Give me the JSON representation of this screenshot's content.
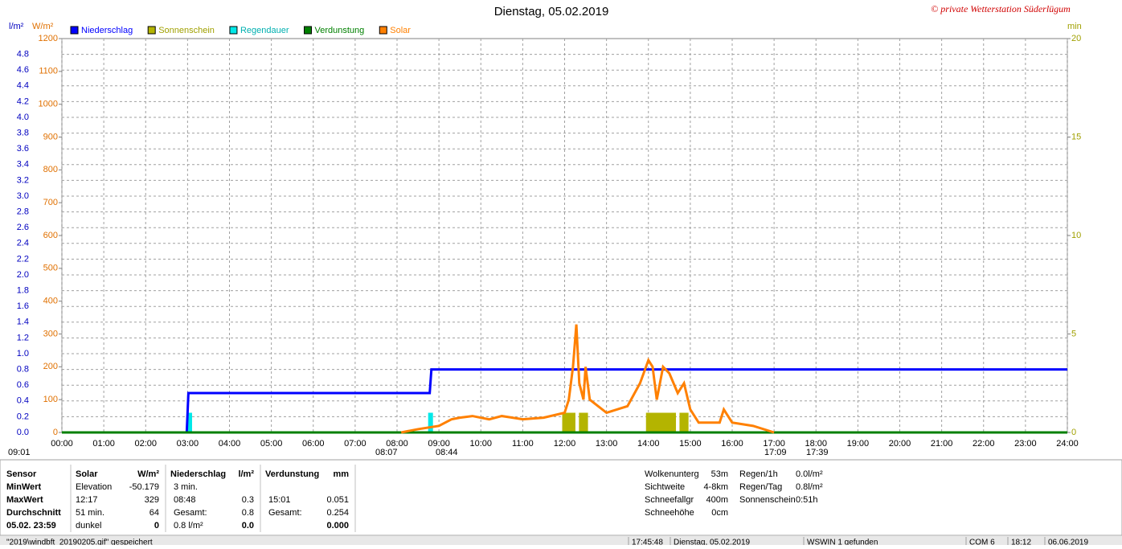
{
  "chart_data": {
    "type": "line",
    "title": "Dienstag, 05.02.2019",
    "credit": "© private Wetterstation Süderlügum",
    "y_unit": "l/m²",
    "ysolar_unit": "W/m²",
    "y2_unit": "min",
    "xlim": [
      0,
      24
    ],
    "xticks": [
      {
        "value": 0,
        "label": "00:00"
      },
      {
        "value": 1,
        "label": "01:00"
      },
      {
        "value": 2,
        "label": "02:00"
      },
      {
        "value": 3,
        "label": "03:00"
      },
      {
        "value": 4,
        "label": "04:00"
      },
      {
        "value": 5,
        "label": "05:00"
      },
      {
        "value": 6,
        "label": "06:00"
      },
      {
        "value": 7,
        "label": "07:00"
      },
      {
        "value": 8,
        "label": "08:00"
      },
      {
        "value": 9,
        "label": "09:00"
      },
      {
        "value": 10,
        "label": "10:00"
      },
      {
        "value": 11,
        "label": "11:00"
      },
      {
        "value": 12,
        "label": "12:00"
      },
      {
        "value": 13,
        "label": "13:00"
      },
      {
        "value": 14,
        "label": "14:00"
      },
      {
        "value": 15,
        "label": "15:00"
      },
      {
        "value": 16,
        "label": "16:00"
      },
      {
        "value": 17,
        "label": "17:00"
      },
      {
        "value": 18,
        "label": "18:00"
      },
      {
        "value": 19,
        "label": "19:00"
      },
      {
        "value": 20,
        "label": "20:00"
      },
      {
        "value": 21,
        "label": "21:00"
      },
      {
        "value": 22,
        "label": "22:00"
      },
      {
        "value": 23,
        "label": "23:00"
      },
      {
        "value": 24,
        "label": "24:00"
      }
    ],
    "ylim": [
      0,
      5
    ],
    "yticks": [
      {
        "value": 0,
        "label": "0.0"
      },
      0.2,
      0.4,
      0.6,
      0.8,
      {
        "value": 1,
        "label": "1.0"
      },
      1.2,
      1.4,
      1.6,
      1.8,
      {
        "value": 2,
        "label": "2.0"
      },
      2.2,
      2.4,
      2.6,
      2.8,
      {
        "value": 3,
        "label": "3.0"
      },
      3.2,
      3.4,
      3.6,
      3.8,
      {
        "value": 4,
        "label": "4.0"
      },
      4.2,
      4.4,
      4.6,
      4.8
    ],
    "ysolar_lim": [
      0,
      1200
    ],
    "ysolar_ticks": [
      0,
      100,
      200,
      300,
      400,
      500,
      600,
      700,
      800,
      900,
      1000,
      1100,
      1200
    ],
    "y2lim": [
      0,
      20
    ],
    "y2ticks": [
      0,
      5,
      10,
      15,
      20
    ],
    "grid": true,
    "series": [
      {
        "name": "Niederschlag",
        "color": "#0000ff",
        "kind": "line",
        "axis": "y",
        "x": [
          0,
          2.98,
          3.02,
          8.78,
          8.82,
          24
        ],
        "values": [
          0,
          0,
          0.5,
          0.5,
          0.8,
          0.8
        ]
      },
      {
        "name": "Sonnenschein",
        "color": "#b4b400",
        "kind": "bar",
        "axis": "y2",
        "x": [
          12.0,
          12.1,
          12.2,
          12.4,
          12.5,
          14.0,
          14.1,
          14.2,
          14.3,
          14.4,
          14.5,
          14.6,
          14.8,
          14.9
        ],
        "values": [
          1,
          1,
          1,
          1,
          1,
          1,
          1,
          1,
          1,
          1,
          1,
          1,
          1,
          1
        ]
      },
      {
        "name": "Regendauer",
        "color": "#00e8e8",
        "kind": "bar",
        "axis": "y2",
        "x": [
          3.05,
          8.8
        ],
        "values": [
          1,
          1
        ]
      },
      {
        "name": "Verdunstung",
        "color": "#008000",
        "kind": "line",
        "axis": "y",
        "x": [
          0,
          24
        ],
        "values": [
          0,
          0
        ]
      },
      {
        "name": "Solar",
        "color": "#ff8000",
        "kind": "line",
        "axis": "ysolar",
        "x": [
          8.1,
          8.5,
          9,
          9.3,
          9.5,
          9.8,
          10.2,
          10.5,
          11,
          11.5,
          12,
          12.1,
          12.2,
          12.28,
          12.35,
          12.45,
          12.5,
          12.6,
          13,
          13.5,
          13.8,
          14,
          14.1,
          14.2,
          14.35,
          14.5,
          14.7,
          14.85,
          15,
          15.2,
          15.7,
          15.8,
          16,
          16.5,
          17
        ],
        "values": [
          0,
          10,
          20,
          40,
          45,
          50,
          40,
          50,
          40,
          45,
          60,
          100,
          200,
          329,
          150,
          100,
          200,
          100,
          60,
          80,
          150,
          220,
          200,
          100,
          200,
          180,
          120,
          150,
          70,
          30,
          30,
          70,
          30,
          20,
          0
        ]
      }
    ],
    "sun_times": [
      "09:01",
      "08:07",
      "08:44",
      "17:09",
      "17:39"
    ]
  },
  "stats": {
    "sensor": [
      "Sensor",
      "MinWert",
      "MaxWert",
      "Durchschnitt",
      "05.02. 23:59"
    ],
    "groups": [
      {
        "header": [
          "Solar",
          "W/m²"
        ],
        "rows": [
          [
            "Elevation",
            "-50.179"
          ],
          [
            "12:17",
            "329"
          ],
          [
            "51 min.",
            "64"
          ],
          [
            "dunkel",
            "0"
          ]
        ]
      },
      {
        "header": [
          "Niederschlag",
          "l/m²"
        ],
        "rows": [
          [
            "3 min.",
            null
          ],
          [
            "08:48",
            "0.3"
          ],
          [
            "Gesamt:",
            "0.8"
          ],
          [
            "0.8 l/m²",
            "0.0"
          ]
        ]
      },
      {
        "header": [
          "Verdunstung",
          "mm"
        ],
        "rows": [
          [
            null,
            null
          ],
          [
            "15:01",
            "0.051"
          ],
          [
            "Gesamt:",
            "0.254"
          ],
          [
            null,
            "0.000"
          ]
        ]
      }
    ],
    "info_left": [
      [
        "Wolkenunterg",
        "53m"
      ],
      [
        "Sichtweite",
        "4-8km"
      ],
      [
        "Schneefallgr",
        "400m"
      ],
      [
        "Schneehöhe",
        "0cm"
      ]
    ],
    "info_right": [
      [
        "Regen/1h",
        "0.0l/m²"
      ],
      [
        "Regen/Tag",
        "0.8l/m²"
      ],
      [
        "Sonnenschein",
        "0:51h"
      ]
    ]
  },
  "status_bar": [
    "\"2019\\windbft_20190205.gif\" gespeichert",
    "17:45:48",
    "Dienstag, 05.02.2019",
    "WSWIN 1 gefunden",
    "COM 6",
    "18:12",
    "06.06.2019"
  ]
}
